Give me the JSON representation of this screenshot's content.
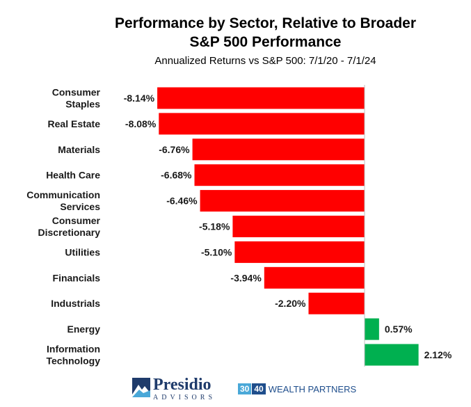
{
  "chart_data": {
    "type": "bar",
    "orientation": "horizontal",
    "title": [
      "Performance by Sector, Relative to Broader",
      "S&P 500 Performance"
    ],
    "subtitle": "Annualized Returns vs S&P 500: 7/1/20 - 7/1/24",
    "categories": [
      [
        "Consumer",
        "Staples"
      ],
      [
        "Real Estate"
      ],
      [
        "Materials"
      ],
      [
        "Health Care"
      ],
      [
        "Communication",
        "Services"
      ],
      [
        "Consumer",
        "Discretionary"
      ],
      [
        "Utilities"
      ],
      [
        "Financials"
      ],
      [
        "Industrials"
      ],
      [
        "Energy"
      ],
      [
        "Information",
        "Technology"
      ]
    ],
    "values": [
      -8.14,
      -8.08,
      -6.76,
      -6.68,
      -6.46,
      -5.18,
      -5.1,
      -3.94,
      -2.2,
      0.57,
      2.12
    ],
    "value_labels": [
      "-8.14%",
      "-8.08%",
      "-6.76%",
      "-6.68%",
      "-6.46%",
      "-5.18%",
      "-5.10%",
      "-3.94%",
      "-2.20%",
      "0.57%",
      "2.12%"
    ],
    "colors": {
      "negative": "#ff0000",
      "positive": "#00b050"
    },
    "grid": false,
    "legend": "none"
  },
  "footer": {
    "presidio_name": "Presidio",
    "presidio_sub": "ADVISORS",
    "wealth_30": "30",
    "wealth_40": "40",
    "wealth_text": "WEALTH PARTNERS"
  }
}
